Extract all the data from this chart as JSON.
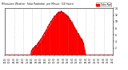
{
  "title": "Milwaukee Weather  Solar Radiation  per Minute  (24 Hours)",
  "background_color": "#ffffff",
  "fill_color": "#ff0000",
  "line_color": "#cc0000",
  "ylim": [
    0,
    1400
  ],
  "xlim": [
    0,
    1440
  ],
  "grid_color": "#888888",
  "ytick_labels": [
    "2",
    "4",
    "6",
    "8",
    "10",
    "12",
    "14"
  ],
  "ytick_values": [
    200,
    400,
    600,
    800,
    1000,
    1200,
    1400
  ],
  "xtick_step": 60,
  "legend_label": "Solar Rad",
  "legend_color": "#ff0000",
  "peak_minute": 750,
  "sigma": 190,
  "peak_value": 1280,
  "day_start": 330,
  "day_end": 1080
}
